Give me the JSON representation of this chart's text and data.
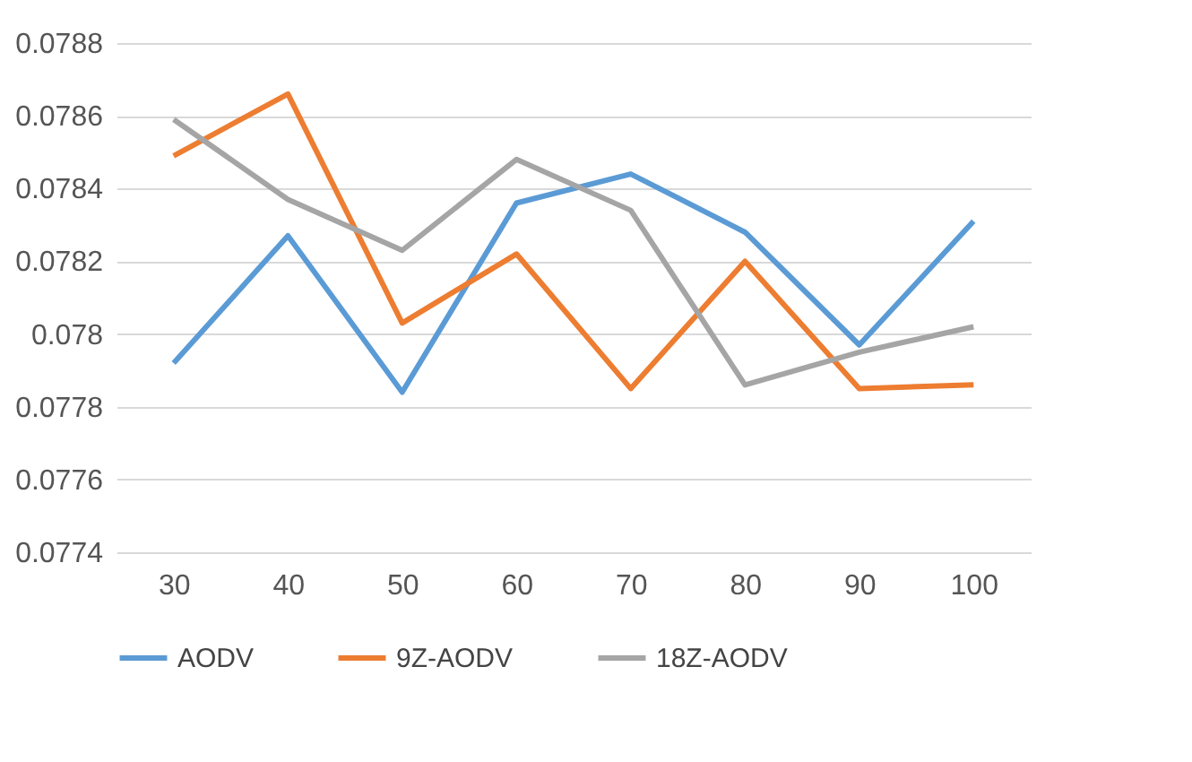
{
  "chart_data": {
    "type": "line",
    "categories": [
      "30",
      "40",
      "50",
      "60",
      "70",
      "80",
      "90",
      "100"
    ],
    "series": [
      {
        "name": "AODV",
        "color": "#5b9bd5",
        "values": [
          0.07792,
          0.07827,
          0.07784,
          0.07836,
          0.07844,
          0.07828,
          0.07797,
          0.07831
        ]
      },
      {
        "name": "9Z-AODV",
        "color": "#ed7d31",
        "values": [
          0.07849,
          0.07866,
          0.07803,
          0.07822,
          0.07785,
          0.0782,
          0.07785,
          0.07786
        ]
      },
      {
        "name": "18Z-AODV",
        "color": "#a5a5a5",
        "values": [
          0.07859,
          0.07837,
          0.07823,
          0.07848,
          0.07834,
          0.07786,
          0.07795,
          0.07802
        ]
      }
    ],
    "ylim": [
      0.0774,
      0.0788
    ],
    "yticks": [
      0.0774,
      0.0776,
      0.0778,
      0.078,
      0.0782,
      0.0784,
      0.0786,
      0.0788
    ],
    "grid": "y",
    "legend": "bottom",
    "marker": "none",
    "line_style": "solid"
  }
}
